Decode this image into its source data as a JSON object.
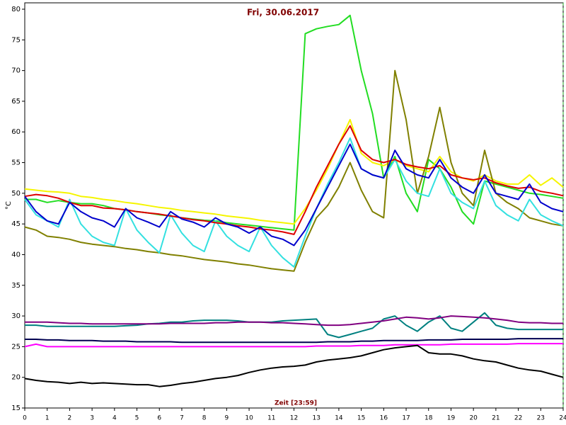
{
  "chart_data": {
    "type": "line",
    "title": "Fri, 30.06.2017",
    "x_label": "Zeit [23:59]",
    "y_label": "°C",
    "xlim": [
      0,
      24
    ],
    "ylim": [
      15,
      80
    ],
    "xticks": [
      0,
      1,
      2,
      3,
      4,
      5,
      6,
      7,
      8,
      9,
      10,
      11,
      12,
      13,
      14,
      15,
      16,
      17,
      18,
      19,
      20,
      21,
      22,
      23,
      24
    ],
    "yticks": [
      15,
      20,
      25,
      30,
      35,
      40,
      45,
      50,
      55,
      60,
      65,
      70,
      75,
      80
    ],
    "x": [
      0,
      0.5,
      1,
      1.5,
      2,
      2.5,
      3,
      3.5,
      4,
      4.5,
      5,
      5.5,
      6,
      6.5,
      7,
      7.5,
      8,
      8.5,
      9,
      9.5,
      10,
      10.5,
      11,
      11.5,
      12,
      12.5,
      13,
      13.5,
      14,
      14.5,
      15,
      15.5,
      16,
      16.5,
      17,
      17.5,
      18,
      18.5,
      19,
      19.5,
      20,
      20.5,
      21,
      21.5,
      22,
      22.5,
      23,
      23.5,
      24
    ],
    "series": [
      {
        "color": "#22dd22",
        "values": [
          49,
          49,
          48.5,
          48.8,
          48.5,
          48.3,
          48.3,
          48,
          47.5,
          47.3,
          47,
          46.8,
          46.5,
          46.3,
          46,
          45.8,
          45.6,
          45.5,
          45.2,
          45,
          44.8,
          44.6,
          44.4,
          44.2,
          44,
          76,
          76.8,
          77.2,
          77.5,
          79,
          70,
          63,
          52.5,
          56,
          50,
          47,
          55.5,
          54,
          51,
          47,
          45,
          52,
          51.5,
          51,
          50.5,
          50,
          49.8,
          49.5,
          49.2
        ]
      },
      {
        "color": "#f5f500",
        "values": [
          50.7,
          50.5,
          50.3,
          50.2,
          50,
          49.5,
          49.3,
          49,
          48.8,
          48.5,
          48.3,
          48,
          47.7,
          47.5,
          47.2,
          47,
          46.8,
          46.6,
          46.3,
          46.1,
          45.9,
          45.6,
          45.4,
          45.2,
          45,
          47.5,
          50.5,
          54,
          58,
          62,
          56.5,
          55,
          54.5,
          55.5,
          54.5,
          54,
          53.5,
          56,
          53.5,
          52.5,
          52,
          53,
          52,
          51.5,
          51.5,
          53,
          51.3,
          52.5,
          51
        ]
      },
      {
        "color": "#808000",
        "values": [
          44.5,
          44,
          43,
          42.8,
          42.5,
          42,
          41.7,
          41.5,
          41.3,
          41,
          40.8,
          40.5,
          40.3,
          40,
          39.8,
          39.5,
          39.2,
          39,
          38.8,
          38.5,
          38.3,
          38,
          37.7,
          37.5,
          37.3,
          42,
          46,
          48,
          51,
          55,
          50.5,
          47,
          46,
          70,
          62,
          50,
          56,
          64,
          55,
          50,
          48,
          57,
          50,
          48.5,
          47.5,
          46,
          45.5,
          45,
          44.7
        ]
      },
      {
        "color": "#33e0e0",
        "values": [
          49,
          46.5,
          45.5,
          44.5,
          49,
          45,
          43,
          42,
          41.5,
          47.5,
          44,
          42,
          40.3,
          46.5,
          43.5,
          41.5,
          40.5,
          45.5,
          43,
          41.5,
          40.5,
          44.5,
          41.5,
          39.5,
          38,
          43,
          47.5,
          51.5,
          55,
          59,
          54,
          53,
          52.5,
          55.5,
          52,
          50,
          49.5,
          54,
          50,
          48.5,
          47.5,
          52,
          48,
          46.5,
          45.5,
          49,
          46.5,
          45.5,
          44.7
        ]
      },
      {
        "color": "#dd0000",
        "values": [
          49.5,
          49.8,
          49.6,
          49.2,
          48.5,
          48,
          48,
          47.6,
          47.5,
          47.3,
          47,
          46.8,
          46.6,
          46.3,
          46,
          45.7,
          45.5,
          45.2,
          45,
          44.7,
          44.5,
          44.2,
          44,
          43.7,
          43.3,
          47,
          51,
          54.5,
          58,
          61,
          57,
          55.5,
          55,
          55.5,
          54.7,
          54.3,
          54,
          54.5,
          53,
          52.5,
          52.2,
          52.5,
          51.7,
          51.2,
          50.8,
          51,
          50.3,
          50,
          49.6
        ]
      },
      {
        "color": "#0000cc",
        "values": [
          49.5,
          47,
          45.5,
          45,
          48.5,
          47,
          46,
          45.5,
          44.5,
          47.5,
          46,
          45.3,
          44.5,
          47,
          45.8,
          45.3,
          44.5,
          46,
          45,
          44.5,
          43.5,
          44.5,
          43,
          42.5,
          41.5,
          44,
          47.5,
          51,
          54.5,
          58,
          54,
          53,
          52.5,
          57,
          54,
          53,
          52.5,
          55.5,
          52.5,
          51,
          50,
          53,
          50,
          49.5,
          49,
          51.5,
          48.5,
          47.5,
          47
        ]
      },
      {
        "color": "#008080",
        "values": [
          28.5,
          28.5,
          28.3,
          28.3,
          28.3,
          28.3,
          28.3,
          28.3,
          28.3,
          28.4,
          28.5,
          28.7,
          28.8,
          29,
          29,
          29.2,
          29.3,
          29.3,
          29.3,
          29.2,
          29,
          29,
          29,
          29.2,
          29.3,
          29.4,
          29.5,
          27,
          26.5,
          27,
          27.5,
          28,
          29.5,
          30,
          28.5,
          27.5,
          29,
          30,
          28,
          27.5,
          29,
          30.5,
          28.5,
          28,
          27.8,
          27.8,
          27.8,
          27.8,
          27.8
        ]
      },
      {
        "color": "#800080",
        "values": [
          29,
          29,
          29,
          28.9,
          28.8,
          28.8,
          28.7,
          28.7,
          28.7,
          28.7,
          28.7,
          28.7,
          28.7,
          28.8,
          28.8,
          28.8,
          28.8,
          28.9,
          28.9,
          29,
          29,
          29,
          28.9,
          28.9,
          28.8,
          28.7,
          28.6,
          28.5,
          28.5,
          28.6,
          28.8,
          29,
          29.2,
          29.5,
          29.8,
          29.7,
          29.5,
          29.7,
          30,
          29.9,
          29.8,
          29.7,
          29.5,
          29.3,
          29,
          28.9,
          28.9,
          28.8,
          28.8
        ]
      },
      {
        "color": "#000050",
        "values": [
          26.2,
          26.2,
          26.1,
          26.1,
          26,
          26,
          26,
          25.9,
          25.9,
          25.9,
          25.8,
          25.8,
          25.8,
          25.8,
          25.7,
          25.7,
          25.7,
          25.7,
          25.7,
          25.7,
          25.7,
          25.7,
          25.7,
          25.7,
          25.7,
          25.7,
          25.7,
          25.8,
          25.8,
          25.8,
          25.9,
          25.9,
          26,
          26,
          26,
          26,
          26.1,
          26.1,
          26.1,
          26.2,
          26.2,
          26.2,
          26.2,
          26.2,
          26.3,
          26.3,
          26.3,
          26.3,
          26.3
        ]
      },
      {
        "color": "#ff00ff",
        "values": [
          25,
          25.4,
          25,
          25,
          25,
          25,
          25,
          25,
          25,
          25,
          25,
          25,
          25,
          25,
          25,
          25,
          25,
          25,
          25,
          25,
          25,
          25,
          25,
          25,
          25,
          25,
          25.1,
          25.1,
          25.1,
          25.1,
          25.2,
          25.2,
          25.2,
          25.3,
          25.3,
          25.3,
          25.3,
          25.3,
          25.4,
          25.4,
          25.4,
          25.4,
          25.4,
          25.4,
          25.5,
          25.5,
          25.5,
          25.5,
          25.5
        ]
      },
      {
        "color": "#000000",
        "values": [
          19.8,
          19.5,
          19.3,
          19.2,
          19,
          19.2,
          19,
          19.1,
          19,
          18.9,
          18.8,
          18.8,
          18.5,
          18.7,
          19,
          19.2,
          19.5,
          19.8,
          20,
          20.3,
          20.8,
          21.2,
          21.5,
          21.7,
          21.8,
          22,
          22.5,
          22.8,
          23,
          23.2,
          23.5,
          24,
          24.5,
          24.8,
          25,
          25.2,
          24,
          23.8,
          23.8,
          23.5,
          23,
          22.7,
          22.5,
          22,
          21.5,
          21.2,
          21,
          20.5,
          20
        ]
      }
    ]
  }
}
